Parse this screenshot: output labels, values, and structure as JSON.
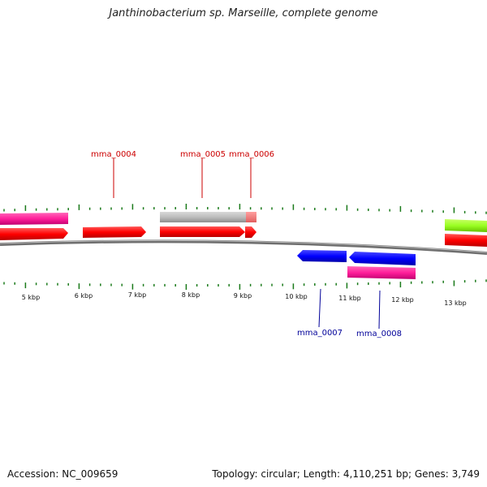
{
  "title": "Janthinobacterium sp. Marseille, complete genome",
  "footer": {
    "accession": "Accession: NC_009659",
    "stats": "Topology: circular; Length: 4,110,251 bp; Genes: 3,749"
  },
  "colors": {
    "forward_label": "#cc0000",
    "reverse_label": "#000099",
    "tick": "#1a7a1a",
    "backbone": "#888888"
  },
  "scale_labels": [
    "5 kbp",
    "6 kbp",
    "7 kbp",
    "8 kbp",
    "9 kbp",
    "10 kbp",
    "11 kbp",
    "12 kbp",
    "13 kbp"
  ],
  "gene_labels": [
    {
      "name": "mma_0004",
      "strand": "forward"
    },
    {
      "name": "mma_0005",
      "strand": "forward"
    },
    {
      "name": "mma_0006",
      "strand": "forward"
    },
    {
      "name": "mma_0007",
      "strand": "reverse"
    },
    {
      "name": "mma_0008",
      "strand": "reverse"
    }
  ]
}
